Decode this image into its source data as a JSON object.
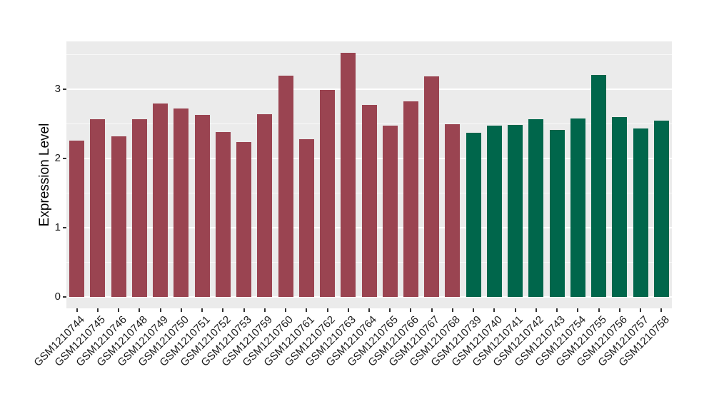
{
  "figure": {
    "background_color": "#FFFFFF",
    "panel_background_color": "#EBEBEB",
    "grid_color": "#FFFFFF",
    "tick_mark_color": "#333333",
    "axis_text_color": "#1A1A1A",
    "axis_title_color": "#000000"
  },
  "chart_data": {
    "type": "bar",
    "title": "",
    "xlabel": "",
    "ylabel": "Expression Level",
    "ylim": [
      0,
      3.7
    ],
    "yticks": [
      0,
      1,
      2,
      3
    ],
    "yminorticks": [
      0.5,
      1.5,
      2.5,
      3.5
    ],
    "grid": "on",
    "legend_position": "none",
    "bar_colors": {
      "group1": "#9A4451",
      "group2": "#00664B"
    },
    "categories": [
      "GSM1210744",
      "GSM1210745",
      "GSM1210746",
      "GSM1210748",
      "GSM1210749",
      "GSM1210750",
      "GSM1210751",
      "GSM1210752",
      "GSM1210753",
      "GSM1210759",
      "GSM1210760",
      "GSM1210761",
      "GSM1210762",
      "GSM1210763",
      "GSM1210764",
      "GSM1210765",
      "GSM1210766",
      "GSM1210767",
      "GSM1210768",
      "GSM1210739",
      "GSM1210740",
      "GSM1210741",
      "GSM1210742",
      "GSM1210743",
      "GSM1210754",
      "GSM1210755",
      "GSM1210756",
      "GSM1210757",
      "GSM1210758"
    ],
    "values": [
      2.26,
      2.57,
      2.32,
      2.57,
      2.79,
      2.72,
      2.63,
      2.38,
      2.24,
      2.64,
      3.2,
      2.28,
      2.99,
      3.53,
      2.77,
      2.47,
      2.82,
      3.19,
      2.49,
      2.37,
      2.47,
      2.48,
      2.57,
      2.41,
      2.58,
      3.21,
      2.6,
      2.43,
      2.55
    ],
    "groups": [
      "group1",
      "group1",
      "group1",
      "group1",
      "group1",
      "group1",
      "group1",
      "group1",
      "group1",
      "group1",
      "group1",
      "group1",
      "group1",
      "group1",
      "group1",
      "group1",
      "group1",
      "group1",
      "group1",
      "group2",
      "group2",
      "group2",
      "group2",
      "group2",
      "group2",
      "group2",
      "group2",
      "group2",
      "group2"
    ]
  }
}
